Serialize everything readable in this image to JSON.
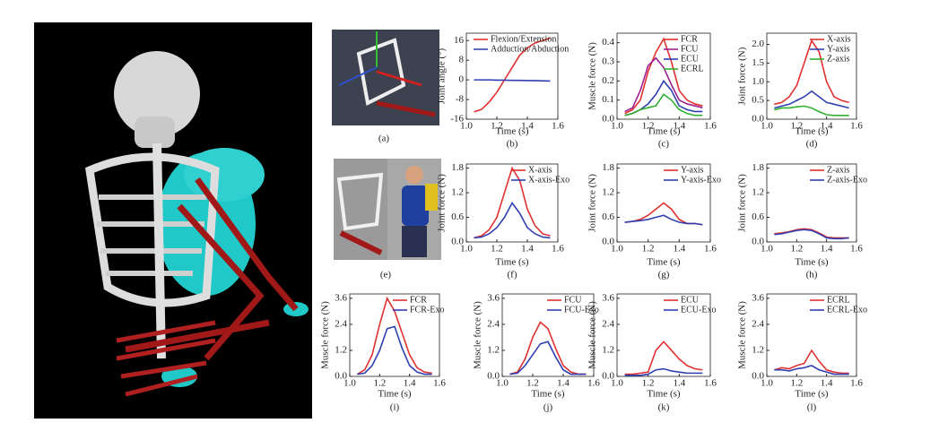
{
  "images": [
    {
      "caption": "(a)"
    },
    {
      "caption": "(e)"
    }
  ],
  "chart_data": [
    {
      "type": "line",
      "caption": "(b)",
      "xlabel": "Time (s)",
      "ylabel": "Joint angle (°)",
      "legend": "upper left",
      "x": [
        1.05,
        1.1,
        1.15,
        1.2,
        1.25,
        1.3,
        1.35,
        1.4,
        1.45,
        1.5,
        1.55
      ],
      "xlim": [
        1.0,
        1.6
      ],
      "xticks": [
        {
          "value": 1.0,
          "label": "1.0"
        },
        1.2,
        1.4,
        {
          "value": 1.6,
          "label": "1.6"
        }
      ],
      "ylim": [
        -16,
        19
      ],
      "yticks": [
        -16,
        -8,
        0,
        8,
        16
      ],
      "series": [
        {
          "name": "Flexion/Extension",
          "color": "#e03030",
          "values": [
            -13,
            -12,
            -9,
            -5,
            0,
            5,
            10,
            13,
            15,
            16,
            17
          ]
        },
        {
          "name": "Adduction/Abduction",
          "color": "#3040b0",
          "values": [
            0,
            0,
            0,
            -0.1,
            -0.1,
            -0.2,
            -0.2,
            -0.3,
            -0.3,
            -0.4,
            -0.5
          ]
        }
      ]
    },
    {
      "type": "line",
      "caption": "(c)",
      "xlabel": "Time (s)",
      "ylabel": "Muscle force (N)",
      "legend": "upper right",
      "x": [
        1.05,
        1.1,
        1.15,
        1.2,
        1.25,
        1.3,
        1.35,
        1.4,
        1.45,
        1.5,
        1.55
      ],
      "xlim": [
        1.0,
        1.6
      ],
      "xticks": [
        {
          "value": 1.0,
          "label": "1.0"
        },
        1.2,
        1.4,
        {
          "value": 1.6,
          "label": "1.6"
        }
      ],
      "ylim": [
        0,
        0.45
      ],
      "yticks": [
        {
          "value": 0,
          "label": "0.0"
        },
        0.1,
        0.2,
        0.3,
        0.4
      ],
      "series": [
        {
          "name": "FCR",
          "color": "#e03030",
          "values": [
            0.03,
            0.05,
            0.1,
            0.25,
            0.35,
            0.42,
            0.3,
            0.15,
            0.1,
            0.08,
            0.07
          ]
        },
        {
          "name": "FCU",
          "color": "#a02090",
          "values": [
            0.04,
            0.06,
            0.15,
            0.28,
            0.32,
            0.27,
            0.18,
            0.1,
            0.08,
            0.07,
            0.06
          ]
        },
        {
          "name": "ECU",
          "color": "#3040b0",
          "values": [
            0.02,
            0.03,
            0.05,
            0.08,
            0.13,
            0.2,
            0.15,
            0.07,
            0.05,
            0.04,
            0.04
          ]
        },
        {
          "name": "ECRL",
          "color": "#30b030",
          "values": [
            0.02,
            0.03,
            0.05,
            0.06,
            0.07,
            0.13,
            0.1,
            0.05,
            0.03,
            0.02,
            0.02
          ]
        }
      ]
    },
    {
      "type": "line",
      "caption": "(d)",
      "xlabel": "Time (s)",
      "ylabel": "Joint force (N)",
      "legend": "upper right",
      "x": [
        1.05,
        1.1,
        1.15,
        1.2,
        1.25,
        1.3,
        1.35,
        1.4,
        1.45,
        1.5,
        1.55
      ],
      "xlim": [
        1.0,
        1.6
      ],
      "xticks": [
        {
          "value": 1.0,
          "label": "1.0"
        },
        1.2,
        1.4,
        {
          "value": 1.6,
          "label": "1.6"
        }
      ],
      "ylim": [
        0,
        2.3
      ],
      "yticks": [
        {
          "value": 0,
          "label": "0.0"
        },
        0.5,
        {
          "value": 1,
          "label": "1.0"
        },
        1.5,
        {
          "value": 2,
          "label": "2.0"
        }
      ],
      "series": [
        {
          "name": "X-axis",
          "color": "#e03030",
          "values": [
            0.4,
            0.45,
            0.6,
            0.9,
            1.5,
            2.1,
            1.8,
            1.0,
            0.6,
            0.5,
            0.45
          ]
        },
        {
          "name": "Y-axis",
          "color": "#3040b0",
          "values": [
            0.3,
            0.35,
            0.4,
            0.5,
            0.6,
            0.75,
            0.6,
            0.45,
            0.4,
            0.35,
            0.3
          ]
        },
        {
          "name": "Z-axis",
          "color": "#30b030",
          "values": [
            0.25,
            0.3,
            0.3,
            0.33,
            0.35,
            0.3,
            0.2,
            0.12,
            0.1,
            0.1,
            0.1
          ]
        }
      ]
    },
    {
      "type": "line",
      "caption": "(f)",
      "xlabel": "Time (s)",
      "ylabel": "Joint force (N)",
      "legend": "upper right",
      "x": [
        1.05,
        1.1,
        1.15,
        1.2,
        1.25,
        1.3,
        1.35,
        1.4,
        1.45,
        1.5,
        1.55
      ],
      "xlim": [
        1.0,
        1.6
      ],
      "xticks": [
        {
          "value": 1.0,
          "label": "1.0"
        },
        1.2,
        1.4,
        {
          "value": 1.6,
          "label": "1.6"
        }
      ],
      "ylim": [
        0,
        1.9
      ],
      "yticks": [
        {
          "value": 0,
          "label": "0.0"
        },
        0.6,
        1.2,
        1.8
      ],
      "series": [
        {
          "name": "X-axis",
          "color": "#e03030",
          "values": [
            0.1,
            0.15,
            0.3,
            0.6,
            1.2,
            1.8,
            1.5,
            0.8,
            0.4,
            0.2,
            0.15
          ]
        },
        {
          "name": "X-axis-Exo",
          "color": "#3040b0",
          "values": [
            0.1,
            0.12,
            0.2,
            0.35,
            0.6,
            0.95,
            0.7,
            0.35,
            0.2,
            0.12,
            0.1
          ]
        }
      ]
    },
    {
      "type": "line",
      "caption": "(g)",
      "xlabel": "Time (s)",
      "ylabel": "Joint force (N)",
      "legend": "upper right",
      "x": [
        1.05,
        1.1,
        1.15,
        1.2,
        1.25,
        1.3,
        1.35,
        1.4,
        1.45,
        1.5,
        1.55
      ],
      "xlim": [
        1.0,
        1.6
      ],
      "xticks": [
        {
          "value": 1.0,
          "label": "1.0"
        },
        1.2,
        1.4,
        {
          "value": 1.6,
          "label": "1.6"
        }
      ],
      "ylim": [
        0,
        1.9
      ],
      "yticks": [
        {
          "value": 0,
          "label": "0.0"
        },
        0.6,
        1.2,
        1.8
      ],
      "series": [
        {
          "name": "Y-axis",
          "color": "#e03030",
          "values": [
            0.48,
            0.5,
            0.55,
            0.65,
            0.8,
            0.95,
            0.8,
            0.55,
            0.45,
            0.45,
            0.42
          ]
        },
        {
          "name": "Y-axis-Exo",
          "color": "#3040b0",
          "values": [
            0.48,
            0.5,
            0.52,
            0.55,
            0.6,
            0.65,
            0.55,
            0.48,
            0.45,
            0.45,
            0.42
          ]
        }
      ]
    },
    {
      "type": "line",
      "caption": "(h)",
      "xlabel": "Time (s)",
      "ylabel": "Joint force (N)",
      "legend": "upper right",
      "x": [
        1.05,
        1.1,
        1.15,
        1.2,
        1.25,
        1.3,
        1.35,
        1.4,
        1.45,
        1.5,
        1.55
      ],
      "xlim": [
        1.0,
        1.6
      ],
      "xticks": [
        {
          "value": 1.0,
          "label": "1.0"
        },
        1.2,
        1.4,
        {
          "value": 1.6,
          "label": "1.6"
        }
      ],
      "ylim": [
        0,
        1.9
      ],
      "yticks": [
        {
          "value": 0,
          "label": "0.0"
        },
        0.6,
        1.2,
        1.8
      ],
      "series": [
        {
          "name": "Z-axis",
          "color": "#e03030",
          "values": [
            0.2,
            0.22,
            0.25,
            0.3,
            0.32,
            0.3,
            0.22,
            0.12,
            0.1,
            0.1,
            0.1
          ]
        },
        {
          "name": "Z-axis-Exo",
          "color": "#3040b0",
          "values": [
            0.18,
            0.2,
            0.24,
            0.28,
            0.3,
            0.28,
            0.2,
            0.1,
            0.08,
            0.08,
            0.1
          ]
        }
      ]
    },
    {
      "type": "line",
      "caption": "(i)",
      "xlabel": "Time (s)",
      "ylabel": "Muscle force (N)",
      "legend": "upper right",
      "x": [
        1.05,
        1.1,
        1.15,
        1.2,
        1.25,
        1.3,
        1.35,
        1.4,
        1.45,
        1.5,
        1.55
      ],
      "xlim": [
        1.0,
        1.6
      ],
      "xticks": [
        {
          "value": 1.0,
          "label": "1.0"
        },
        1.2,
        1.4,
        {
          "value": 1.6,
          "label": "1.6"
        }
      ],
      "ylim": [
        0,
        3.8
      ],
      "yticks": [
        {
          "value": 0,
          "label": "0.0"
        },
        1.2,
        2.4,
        3.6
      ],
      "series": [
        {
          "name": "FCR",
          "color": "#e03030",
          "values": [
            0.1,
            0.3,
            1.0,
            2.4,
            3.6,
            3.0,
            2.0,
            1.0,
            0.4,
            0.2,
            0.15
          ]
        },
        {
          "name": "FCR-Exo",
          "color": "#3040b0",
          "values": [
            0.1,
            0.15,
            0.5,
            1.2,
            2.2,
            2.3,
            1.3,
            0.5,
            0.2,
            0.1,
            0.1
          ]
        }
      ]
    },
    {
      "type": "line",
      "caption": "(j)",
      "xlabel": "Time (s)",
      "ylabel": "Muscle force (N)",
      "legend": "upper right",
      "x": [
        1.05,
        1.1,
        1.15,
        1.2,
        1.25,
        1.3,
        1.35,
        1.4,
        1.45,
        1.5,
        1.55
      ],
      "xlim": [
        1.0,
        1.6
      ],
      "xticks": [
        {
          "value": 1.0,
          "label": "1.0"
        },
        1.2,
        1.4,
        {
          "value": 1.6,
          "label": "1.6"
        }
      ],
      "ylim": [
        0,
        3.8
      ],
      "yticks": [
        {
          "value": 0,
          "label": "0.0"
        },
        1.2,
        2.4,
        3.6
      ],
      "series": [
        {
          "name": "FCU",
          "color": "#e03030",
          "values": [
            0.1,
            0.2,
            0.8,
            1.8,
            2.5,
            2.2,
            1.3,
            0.5,
            0.2,
            0.1,
            0.1
          ]
        },
        {
          "name": "FCU-Exo",
          "color": "#3040b0",
          "values": [
            0.1,
            0.15,
            0.5,
            1.0,
            1.5,
            1.6,
            0.9,
            0.3,
            0.1,
            0.1,
            0.1
          ]
        }
      ]
    },
    {
      "type": "line",
      "caption": "(k)",
      "xlabel": "Time (s)",
      "ylabel": "Muscle force (N)",
      "legend": "upper right",
      "x": [
        1.05,
        1.1,
        1.15,
        1.2,
        1.25,
        1.3,
        1.35,
        1.4,
        1.45,
        1.5,
        1.55
      ],
      "xlim": [
        1.0,
        1.6
      ],
      "xticks": [
        {
          "value": 1.0,
          "label": "1.0"
        },
        1.2,
        1.4,
        {
          "value": 1.6,
          "label": "1.6"
        }
      ],
      "ylim": [
        0,
        3.8
      ],
      "yticks": [
        {
          "value": 0,
          "label": "0.0"
        },
        1.2,
        2.4,
        3.6
      ],
      "series": [
        {
          "name": "ECU",
          "color": "#e03030",
          "values": [
            0.1,
            0.1,
            0.15,
            0.2,
            1.2,
            1.6,
            1.2,
            0.8,
            0.5,
            0.35,
            0.3
          ]
        },
        {
          "name": "ECU-Exo",
          "color": "#3040b0",
          "values": [
            0.05,
            0.05,
            0.05,
            0.1,
            0.3,
            0.35,
            0.25,
            0.2,
            0.15,
            0.15,
            0.15
          ]
        }
      ]
    },
    {
      "type": "line",
      "caption": "(l)",
      "xlabel": "Time (s)",
      "ylabel": "Muscle force (N)",
      "legend": "upper right",
      "x": [
        1.05,
        1.1,
        1.15,
        1.2,
        1.25,
        1.3,
        1.35,
        1.4,
        1.45,
        1.5,
        1.55
      ],
      "xlim": [
        1.0,
        1.6
      ],
      "xticks": [
        {
          "value": 1.0,
          "label": "1.0"
        },
        1.2,
        1.4,
        {
          "value": 1.6,
          "label": "1.6"
        }
      ],
      "ylim": [
        0,
        3.8
      ],
      "yticks": [
        {
          "value": 0,
          "label": "0.0"
        },
        1.2,
        2.4,
        3.6
      ],
      "series": [
        {
          "name": "ECRL",
          "color": "#e03030",
          "values": [
            0.3,
            0.4,
            0.35,
            0.5,
            0.6,
            1.2,
            0.7,
            0.3,
            0.2,
            0.15,
            0.15
          ]
        },
        {
          "name": "ECRL-Exo",
          "color": "#3040b0",
          "values": [
            0.3,
            0.3,
            0.25,
            0.35,
            0.4,
            0.5,
            0.3,
            0.2,
            0.1,
            0.1,
            0.1
          ]
        }
      ]
    }
  ]
}
